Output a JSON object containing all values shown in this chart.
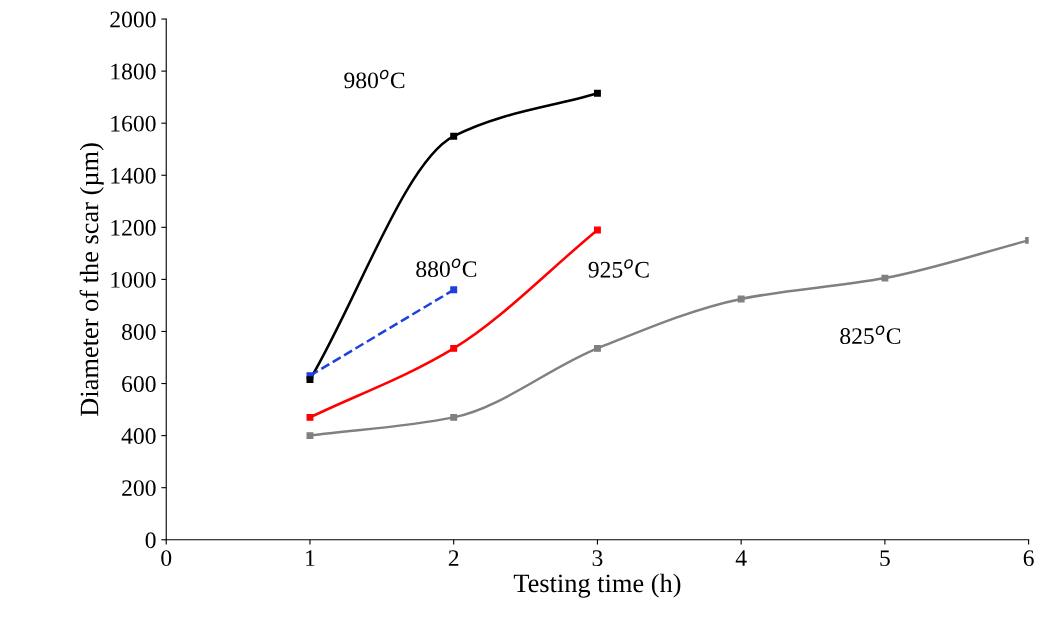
{
  "chart_data": {
    "type": "line",
    "xlabel": "Testing time (h)",
    "ylabel": "Diameter of the scar (µm)",
    "xlim": [
      0,
      6
    ],
    "xticks": [
      0,
      1,
      2,
      3,
      4,
      5,
      6
    ],
    "ylim": [
      0,
      2000
    ],
    "yticks": [
      0,
      200,
      400,
      600,
      800,
      1000,
      1200,
      1400,
      1600,
      1800,
      2000
    ],
    "grid": false,
    "legend": false,
    "marker": "square",
    "series": [
      {
        "name": "980$^{o}$C",
        "color": "#000000",
        "x": [
          1,
          2,
          3
        ],
        "values": [
          615,
          1550,
          1715
        ],
        "line_style": "solid"
      },
      {
        "name": "880$^{o}$C",
        "color": "#1f3fe0",
        "x": [
          1,
          2
        ],
        "values": [
          630,
          960
        ],
        "line_style": "dashed"
      },
      {
        "name": "925$^{o}$C",
        "color": "#ff0000",
        "x": [
          1,
          2,
          3
        ],
        "values": [
          470,
          735,
          1190
        ],
        "line_style": "solid"
      },
      {
        "name": "825$^{o}$C",
        "color": "#808080",
        "x": [
          1,
          2,
          3,
          4,
          5,
          6
        ],
        "values": [
          400,
          470,
          735,
          925,
          1005,
          1150
        ],
        "line_style": "solid"
      }
    ]
  }
}
